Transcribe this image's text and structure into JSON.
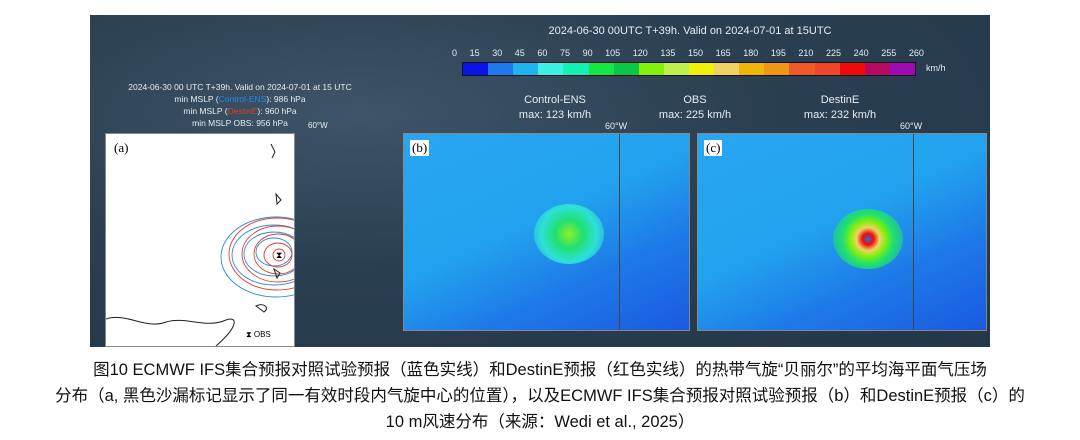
{
  "figure": {
    "main_title": "2024-06-30 00UTC T+39h. Valid on 2024-07-01 at 15UTC",
    "colorbar": {
      "ticks": [
        "0",
        "15",
        "30",
        "45",
        "60",
        "75",
        "90",
        "105",
        "120",
        "135",
        "150",
        "165",
        "180",
        "195",
        "210",
        "225",
        "240",
        "255",
        "260"
      ],
      "unit": "km/h",
      "colors": [
        "#0a14e6",
        "#1e78f0",
        "#1eb4f0",
        "#3cf0e6",
        "#14f0b4",
        "#14e646",
        "#0ac846",
        "#82f00a",
        "#bef050",
        "#f0f00a",
        "#f0d264",
        "#f0b40a",
        "#f09614",
        "#f05a28",
        "#f04628",
        "#f00a0a",
        "#b40a64",
        "#a00ab4"
      ]
    },
    "panel_a": {
      "label": "(a)",
      "header": "2024-06-30 00 UTC T+39h. Valid on 2024-07-01 at 15 UTC",
      "line1_prefix": "min MSLP (",
      "line1_name": "Control-ENS",
      "line1_suffix": "): 986 hPa",
      "line2_prefix": "min MSLP (",
      "line2_name": "DestinE",
      "line2_suffix": "): 960 hPa",
      "line3": "min MSLP OBS: 956 hPa",
      "meridian": "60°W",
      "legend": "OBS",
      "colors": {
        "control": "#2a8be0",
        "destine": "#e0402a"
      }
    },
    "panel_b": {
      "label": "(b)",
      "title": "Control-ENS",
      "max": "max: 123 km/h",
      "meridian": "60°W"
    },
    "panel_obs": {
      "title": "OBS",
      "max": "max: 225 km/h"
    },
    "panel_c": {
      "label": "(c)",
      "title": "DestinE",
      "max": "max: 232 km/h",
      "meridian": "60°W"
    }
  },
  "caption": {
    "line1": "图10  ECMWF IFS集合预报对照试验预报（蓝色实线）和DestinE预报（红色实线）的热带气旋“贝丽尔”的平均海平面气压场",
    "line2": "分布（a, 黑色沙漏标记显示了同一有效时段内气旋中心的位置），以及ECMWF IFS集合预报对照试验预报（b）和DestinE预报（c）的",
    "line3": "10 m风速分布（来源：Wedi et al., 2025）"
  }
}
